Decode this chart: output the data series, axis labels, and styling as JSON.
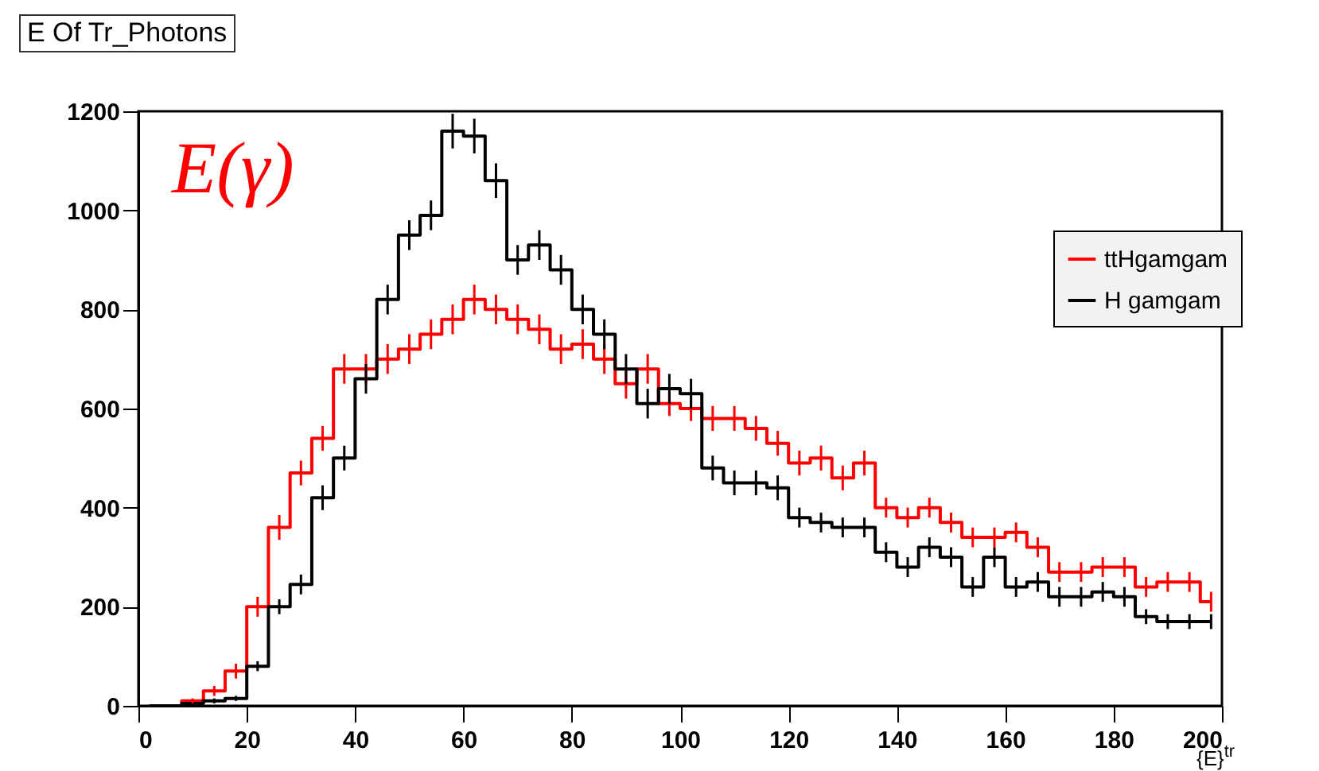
{
  "chart_data": {
    "type": "step",
    "title": "E Of Tr_Photons",
    "xlabel": "{E}$^{tr}$",
    "annotations": [
      "E(γ)"
    ],
    "x": [
      2,
      6,
      10,
      14,
      18,
      22,
      26,
      30,
      34,
      38,
      42,
      46,
      50,
      54,
      58,
      62,
      66,
      70,
      74,
      78,
      82,
      86,
      90,
      94,
      98,
      102,
      106,
      110,
      114,
      118,
      122,
      126,
      130,
      134,
      138,
      142,
      146,
      150,
      154,
      158,
      162,
      166,
      170,
      174,
      178,
      182,
      186,
      190,
      194,
      198
    ],
    "series": [
      {
        "name": "ttHgamgam",
        "color": "#ff0000",
        "values": [
          0,
          0,
          10,
          30,
          70,
          200,
          360,
          470,
          540,
          680,
          680,
          700,
          720,
          750,
          780,
          820,
          800,
          780,
          760,
          720,
          730,
          700,
          650,
          680,
          610,
          600,
          580,
          580,
          560,
          530,
          490,
          500,
          460,
          490,
          400,
          380,
          400,
          370,
          340,
          340,
          350,
          320,
          270,
          270,
          280,
          280,
          240,
          250,
          250,
          210
        ],
        "errors": [
          null,
          null,
          5,
          10,
          15,
          20,
          25,
          25,
          25,
          30,
          30,
          30,
          30,
          30,
          30,
          30,
          30,
          30,
          30,
          30,
          30,
          30,
          30,
          30,
          25,
          25,
          25,
          25,
          25,
          25,
          25,
          25,
          25,
          25,
          20,
          20,
          20,
          20,
          20,
          20,
          20,
          20,
          20,
          20,
          20,
          20,
          20,
          20,
          20,
          20
        ]
      },
      {
        "name": "H gamgam",
        "color": "#000000",
        "values": [
          0,
          0,
          5,
          10,
          15,
          80,
          200,
          245,
          420,
          500,
          660,
          820,
          950,
          990,
          1160,
          1150,
          1060,
          900,
          930,
          880,
          800,
          750,
          680,
          610,
          640,
          630,
          480,
          450,
          450,
          440,
          380,
          370,
          360,
          360,
          310,
          280,
          320,
          300,
          240,
          300,
          240,
          250,
          220,
          220,
          230,
          220,
          180,
          170,
          170,
          170
        ],
        "errors": [
          null,
          null,
          null,
          5,
          5,
          10,
          15,
          20,
          25,
          25,
          30,
          30,
          30,
          30,
          35,
          35,
          35,
          30,
          30,
          30,
          30,
          30,
          30,
          30,
          30,
          30,
          25,
          25,
          25,
          25,
          20,
          20,
          20,
          20,
          20,
          20,
          20,
          20,
          20,
          20,
          20,
          20,
          20,
          20,
          20,
          20,
          15,
          15,
          15,
          15
        ]
      }
    ],
    "xlim": [
      0,
      200
    ],
    "xticks": [
      0,
      20,
      40,
      60,
      80,
      100,
      120,
      140,
      160,
      180,
      200
    ],
    "ylim": [
      0,
      1200
    ],
    "yticks": [
      0,
      200,
      400,
      600,
      800,
      1000,
      1200
    ],
    "grid": false,
    "legend": "right"
  }
}
